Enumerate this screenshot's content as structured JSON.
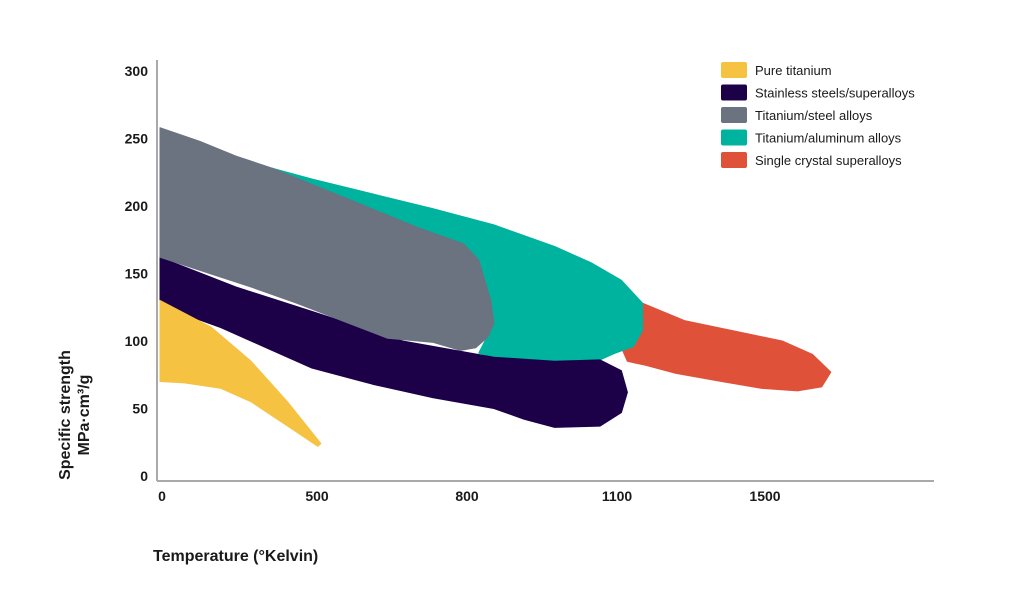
{
  "chart_data": {
    "type": "area",
    "title": "",
    "xlabel": "Temperature (°Kelvin)",
    "ylabel_line1": "Specific strength",
    "ylabel_line2": "MPa·cm³/g",
    "x_ticks": [
      "0",
      "500",
      "800",
      "1100",
      "1500"
    ],
    "y_ticks": [
      "0",
      "50",
      "100",
      "150",
      "200",
      "250",
      "300"
    ],
    "xlim": [
      0,
      2550
    ],
    "ylim": [
      0,
      300
    ],
    "legend_position": "top-right",
    "grid": false,
    "series": [
      {
        "name": "Pure titanium",
        "color": "#F5C242",
        "polygon": [
          [
            0,
            130
          ],
          [
            170,
            110
          ],
          [
            300,
            85
          ],
          [
            420,
            55
          ],
          [
            530,
            24
          ],
          [
            520,
            22
          ],
          [
            440,
            34
          ],
          [
            300,
            55
          ],
          [
            200,
            65
          ],
          [
            80,
            69
          ],
          [
            0,
            70
          ]
        ]
      },
      {
        "name": "Stainless steels/superalloys",
        "color": "#1C0048",
        "polygon": [
          [
            0,
            162
          ],
          [
            250,
            140
          ],
          [
            500,
            122
          ],
          [
            800,
            100
          ],
          [
            1100,
            88
          ],
          [
            1300,
            85
          ],
          [
            1450,
            86
          ],
          [
            1520,
            78
          ],
          [
            1540,
            62
          ],
          [
            1520,
            47
          ],
          [
            1450,
            37
          ],
          [
            1300,
            36
          ],
          [
            1200,
            42
          ],
          [
            1100,
            50
          ],
          [
            900,
            58
          ],
          [
            700,
            68
          ],
          [
            500,
            80
          ],
          [
            350,
            95
          ],
          [
            200,
            110
          ],
          [
            100,
            118
          ],
          [
            0,
            127
          ]
        ]
      },
      {
        "name": "Titanium/steel alloys",
        "color": "#6B7280",
        "polygon": [
          [
            0,
            258
          ],
          [
            130,
            248
          ],
          [
            250,
            237
          ],
          [
            370,
            228
          ],
          [
            600,
            207
          ],
          [
            850,
            184
          ],
          [
            1000,
            172
          ],
          [
            1050,
            160
          ],
          [
            1090,
            130
          ],
          [
            1100,
            113
          ],
          [
            1080,
            103
          ],
          [
            1040,
            95
          ],
          [
            990,
            93
          ],
          [
            900,
            99
          ],
          [
            750,
            102
          ],
          [
            600,
            115
          ],
          [
            450,
            128
          ],
          [
            300,
            140
          ],
          [
            150,
            151
          ],
          [
            0,
            162
          ]
        ]
      },
      {
        "name": "Titanium/aluminum alloys",
        "color": "#00B39E",
        "polygon": [
          [
            370,
            228
          ],
          [
            500,
            220
          ],
          [
            700,
            209
          ],
          [
            900,
            198
          ],
          [
            1100,
            186
          ],
          [
            1300,
            170
          ],
          [
            1420,
            158
          ],
          [
            1520,
            145
          ],
          [
            1590,
            128
          ],
          [
            1590,
            108
          ],
          [
            1560,
            96
          ],
          [
            1500,
            91
          ],
          [
            1450,
            86
          ],
          [
            1300,
            85
          ],
          [
            1100,
            88
          ],
          [
            1050,
            91
          ],
          [
            1100,
            113
          ],
          [
            1090,
            130
          ],
          [
            1050,
            160
          ],
          [
            1000,
            172
          ],
          [
            850,
            184
          ],
          [
            600,
            207
          ]
        ]
      },
      {
        "name": "Single crystal superalloys",
        "color": "#E0513A",
        "polygon": [
          [
            1590,
            128
          ],
          [
            1730,
            115
          ],
          [
            1900,
            107
          ],
          [
            2050,
            100
          ],
          [
            2150,
            90
          ],
          [
            2210,
            77
          ],
          [
            2180,
            66
          ],
          [
            2100,
            63
          ],
          [
            1980,
            65
          ],
          [
            1850,
            70
          ],
          [
            1700,
            76
          ],
          [
            1600,
            82
          ],
          [
            1540,
            85
          ],
          [
            1520,
            95
          ],
          [
            1560,
            96
          ],
          [
            1590,
            108
          ]
        ]
      }
    ]
  }
}
